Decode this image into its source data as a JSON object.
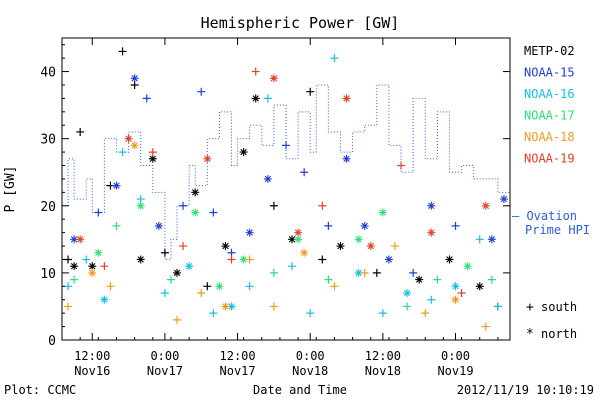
{
  "chart_data": {
    "type": "scatter",
    "title": "Hemispheric Power [GW]",
    "ylabel": "P [GW]",
    "xlabel": "Date and Time",
    "footer_left": "Plot: CCMC",
    "footer_right": "2012/11/19 10:10:19",
    "ylim": [
      0,
      45
    ],
    "yticks": [
      0,
      10,
      20,
      30,
      40
    ],
    "xlim": [
      "2012-11-16T07:00",
      "2012-11-19T09:00"
    ],
    "xticks": [
      {
        "t": "2012-11-16T12:00",
        "line1": "12:00",
        "line2": "Nov16"
      },
      {
        "t": "2012-11-17T00:00",
        "line1": "0:00",
        "line2": "Nov17"
      },
      {
        "t": "2012-11-17T12:00",
        "line1": "12:00",
        "line2": "Nov17"
      },
      {
        "t": "2012-11-18T00:00",
        "line1": "0:00",
        "line2": "Nov18"
      },
      {
        "t": "2012-11-18T12:00",
        "line1": "12:00",
        "line2": "Nov18"
      },
      {
        "t": "2012-11-19T00:00",
        "line1": "0:00",
        "line2": "Nov19"
      }
    ],
    "legend": {
      "placement": "right",
      "markers": [
        {
          "symbol": "+",
          "label": "south"
        },
        {
          "symbol": "*",
          "label": "north"
        }
      ],
      "ovation_line1": "— Ovation",
      "ovation_line2": "Prime HPI"
    },
    "ovation": {
      "name": "Ovation Prime HPI",
      "color": "#2b5fd9",
      "x": [
        "2012-11-16T07:00",
        "2012-11-16T08:00",
        "2012-11-16T09:00",
        "2012-11-16T11:00",
        "2012-11-16T12:00",
        "2012-11-16T14:00",
        "2012-11-16T16:00",
        "2012-11-16T18:00",
        "2012-11-16T20:00",
        "2012-11-16T22:00",
        "2012-11-17T00:00",
        "2012-11-17T01:00",
        "2012-11-17T02:00",
        "2012-11-17T04:00",
        "2012-11-17T05:00",
        "2012-11-17T07:00",
        "2012-11-17T09:00",
        "2012-11-17T11:00",
        "2012-11-17T12:00",
        "2012-11-17T14:00",
        "2012-11-17T16:00",
        "2012-11-17T18:00",
        "2012-11-17T20:00",
        "2012-11-17T22:00",
        "2012-11-18T00:00",
        "2012-11-18T01:00",
        "2012-11-18T03:00",
        "2012-11-18T05:00",
        "2012-11-18T07:00",
        "2012-11-18T09:00",
        "2012-11-18T11:00",
        "2012-11-18T13:00",
        "2012-11-18T15:00",
        "2012-11-18T17:00",
        "2012-11-18T19:00",
        "2012-11-18T21:00",
        "2012-11-18T23:00",
        "2012-11-19T01:00",
        "2012-11-19T03:00",
        "2012-11-19T05:00",
        "2012-11-19T07:00",
        "2012-11-19T09:00"
      ],
      "values": [
        20,
        27,
        21,
        24,
        19,
        30,
        28,
        31,
        26,
        22,
        12,
        15,
        20,
        26,
        23,
        30,
        34,
        26,
        30,
        32,
        29,
        35,
        27,
        34,
        28,
        38,
        31,
        28,
        31,
        32,
        38,
        29,
        25,
        36,
        27,
        34,
        25,
        26,
        24,
        24,
        22,
        18
      ]
    },
    "series": [
      {
        "name": "METP-02",
        "color": "#000000",
        "label": "METP-02",
        "points": [
          {
            "x": "2012-11-16T08:00",
            "y": 12,
            "m": "+"
          },
          {
            "x": "2012-11-16T09:00",
            "y": 11,
            "m": "*"
          },
          {
            "x": "2012-11-16T10:00",
            "y": 31,
            "m": "+"
          },
          {
            "x": "2012-11-16T12:00",
            "y": 11,
            "m": "*"
          },
          {
            "x": "2012-11-16T15:00",
            "y": 23,
            "m": "+"
          },
          {
            "x": "2012-11-16T17:00",
            "y": 43,
            "m": "+"
          },
          {
            "x": "2012-11-16T19:00",
            "y": 38,
            "m": "+"
          },
          {
            "x": "2012-11-16T20:00",
            "y": 12,
            "m": "*"
          },
          {
            "x": "2012-11-16T22:00",
            "y": 27,
            "m": "*"
          },
          {
            "x": "2012-11-17T00:00",
            "y": 13,
            "m": "+"
          },
          {
            "x": "2012-11-17T02:00",
            "y": 10,
            "m": "*"
          },
          {
            "x": "2012-11-17T05:00",
            "y": 22,
            "m": "*"
          },
          {
            "x": "2012-11-17T07:00",
            "y": 8,
            "m": "+"
          },
          {
            "x": "2012-11-17T10:00",
            "y": 14,
            "m": "*"
          },
          {
            "x": "2012-11-17T13:00",
            "y": 28,
            "m": "*"
          },
          {
            "x": "2012-11-17T15:00",
            "y": 36,
            "m": "*"
          },
          {
            "x": "2012-11-17T18:00",
            "y": 20,
            "m": "+"
          },
          {
            "x": "2012-11-17T21:00",
            "y": 15,
            "m": "*"
          },
          {
            "x": "2012-11-18T00:00",
            "y": 37,
            "m": "+"
          },
          {
            "x": "2012-11-18T02:00",
            "y": 12,
            "m": "+"
          },
          {
            "x": "2012-11-18T05:00",
            "y": 14,
            "m": "*"
          },
          {
            "x": "2012-11-18T11:00",
            "y": 10,
            "m": "+"
          },
          {
            "x": "2012-11-18T18:00",
            "y": 9,
            "m": "*"
          },
          {
            "x": "2012-11-18T23:00",
            "y": 12,
            "m": "*"
          },
          {
            "x": "2012-11-19T04:00",
            "y": 8,
            "m": "*"
          },
          {
            "x": "2012-11-19T07:00",
            "y": 5,
            "m": "+"
          }
        ]
      },
      {
        "name": "NOAA-15",
        "color": "#1f3fd1",
        "label": "NOAA-15",
        "points": [
          {
            "x": "2012-11-16T09:00",
            "y": 15,
            "m": "*"
          },
          {
            "x": "2012-11-16T13:00",
            "y": 19,
            "m": "+"
          },
          {
            "x": "2012-11-16T16:00",
            "y": 23,
            "m": "*"
          },
          {
            "x": "2012-11-16T19:00",
            "y": 39,
            "m": "*"
          },
          {
            "x": "2012-11-16T21:00",
            "y": 36,
            "m": "+"
          },
          {
            "x": "2012-11-16T23:00",
            "y": 17,
            "m": "*"
          },
          {
            "x": "2012-11-17T03:00",
            "y": 20,
            "m": "+"
          },
          {
            "x": "2012-11-17T06:00",
            "y": 37,
            "m": "+"
          },
          {
            "x": "2012-11-17T08:00",
            "y": 19,
            "m": "+"
          },
          {
            "x": "2012-11-17T11:00",
            "y": 13,
            "m": "+"
          },
          {
            "x": "2012-11-17T14:00",
            "y": 16,
            "m": "*"
          },
          {
            "x": "2012-11-17T17:00",
            "y": 24,
            "m": "*"
          },
          {
            "x": "2012-11-17T20:00",
            "y": 29,
            "m": "+"
          },
          {
            "x": "2012-11-17T23:00",
            "y": 25,
            "m": "+"
          },
          {
            "x": "2012-11-18T03:00",
            "y": 17,
            "m": "+"
          },
          {
            "x": "2012-11-18T06:00",
            "y": 27,
            "m": "*"
          },
          {
            "x": "2012-11-18T09:00",
            "y": 17,
            "m": "*"
          },
          {
            "x": "2012-11-18T13:00",
            "y": 12,
            "m": "*"
          },
          {
            "x": "2012-11-18T17:00",
            "y": 10,
            "m": "+"
          },
          {
            "x": "2012-11-18T20:00",
            "y": 20,
            "m": "*"
          },
          {
            "x": "2012-11-19T00:00",
            "y": 17,
            "m": "+"
          },
          {
            "x": "2012-11-19T06:00",
            "y": 15,
            "m": "*"
          },
          {
            "x": "2012-11-19T08:00",
            "y": 21,
            "m": "*"
          }
        ]
      },
      {
        "name": "NOAA-16",
        "color": "#18bfe0",
        "label": "NOAA-16",
        "points": [
          {
            "x": "2012-11-16T08:00",
            "y": 8,
            "m": "+"
          },
          {
            "x": "2012-11-16T11:00",
            "y": 12,
            "m": "+"
          },
          {
            "x": "2012-11-16T14:00",
            "y": 6,
            "m": "*"
          },
          {
            "x": "2012-11-16T17:00",
            "y": 28,
            "m": "+"
          },
          {
            "x": "2012-11-16T20:00",
            "y": 21,
            "m": "+"
          },
          {
            "x": "2012-11-17T00:00",
            "y": 7,
            "m": "+"
          },
          {
            "x": "2012-11-17T04:00",
            "y": 11,
            "m": "*"
          },
          {
            "x": "2012-11-17T08:00",
            "y": 4,
            "m": "+"
          },
          {
            "x": "2012-11-17T11:00",
            "y": 5,
            "m": "*"
          },
          {
            "x": "2012-11-17T14:00",
            "y": 8,
            "m": "+"
          },
          {
            "x": "2012-11-17T17:00",
            "y": 36,
            "m": "+"
          },
          {
            "x": "2012-11-17T21:00",
            "y": 11,
            "m": "+"
          },
          {
            "x": "2012-11-18T00:00",
            "y": 4,
            "m": "+"
          },
          {
            "x": "2012-11-18T04:00",
            "y": 42,
            "m": "+"
          },
          {
            "x": "2012-11-18T08:00",
            "y": 10,
            "m": "*"
          },
          {
            "x": "2012-11-18T12:00",
            "y": 4,
            "m": "+"
          },
          {
            "x": "2012-11-18T16:00",
            "y": 7,
            "m": "*"
          },
          {
            "x": "2012-11-18T20:00",
            "y": 6,
            "m": "+"
          },
          {
            "x": "2012-11-19T00:00",
            "y": 8,
            "m": "*"
          },
          {
            "x": "2012-11-19T04:00",
            "y": 15,
            "m": "+"
          },
          {
            "x": "2012-11-19T07:00",
            "y": 5,
            "m": "+"
          }
        ]
      },
      {
        "name": "NOAA-17",
        "color": "#2ede7a",
        "label": "NOAA-17",
        "points": [
          {
            "x": "2012-11-16T09:00",
            "y": 9,
            "m": "+"
          },
          {
            "x": "2012-11-16T13:00",
            "y": 13,
            "m": "*"
          },
          {
            "x": "2012-11-16T16:00",
            "y": 17,
            "m": "+"
          },
          {
            "x": "2012-11-16T20:00",
            "y": 20,
            "m": "*"
          },
          {
            "x": "2012-11-17T01:00",
            "y": 9,
            "m": "+"
          },
          {
            "x": "2012-11-17T05:00",
            "y": 19,
            "m": "*"
          },
          {
            "x": "2012-11-17T09:00",
            "y": 8,
            "m": "*"
          },
          {
            "x": "2012-11-17T13:00",
            "y": 12,
            "m": "*"
          },
          {
            "x": "2012-11-17T18:00",
            "y": 10,
            "m": "+"
          },
          {
            "x": "2012-11-17T22:00",
            "y": 15,
            "m": "*"
          },
          {
            "x": "2012-11-18T03:00",
            "y": 9,
            "m": "+"
          },
          {
            "x": "2012-11-18T08:00",
            "y": 15,
            "m": "*"
          },
          {
            "x": "2012-11-18T12:00",
            "y": 19,
            "m": "*"
          },
          {
            "x": "2012-11-18T16:00",
            "y": 5,
            "m": "+"
          },
          {
            "x": "2012-11-18T21:00",
            "y": 9,
            "m": "+"
          },
          {
            "x": "2012-11-19T02:00",
            "y": 11,
            "m": "*"
          },
          {
            "x": "2012-11-19T06:00",
            "y": 9,
            "m": "+"
          }
        ]
      },
      {
        "name": "NOAA-18",
        "color": "#f39a1e",
        "label": "NOAA-18",
        "points": [
          {
            "x": "2012-11-16T08:00",
            "y": 5,
            "m": "+"
          },
          {
            "x": "2012-11-16T12:00",
            "y": 10,
            "m": "*"
          },
          {
            "x": "2012-11-16T15:00",
            "y": 8,
            "m": "+"
          },
          {
            "x": "2012-11-16T19:00",
            "y": 29,
            "m": "*"
          },
          {
            "x": "2012-11-17T02:00",
            "y": 3,
            "m": "+"
          },
          {
            "x": "2012-11-17T06:00",
            "y": 7,
            "m": "+"
          },
          {
            "x": "2012-11-17T10:00",
            "y": 5,
            "m": "*"
          },
          {
            "x": "2012-11-17T14:00",
            "y": 12,
            "m": "+"
          },
          {
            "x": "2012-11-17T18:00",
            "y": 5,
            "m": "+"
          },
          {
            "x": "2012-11-17T23:00",
            "y": 13,
            "m": "*"
          },
          {
            "x": "2012-11-18T04:00",
            "y": 8,
            "m": "+"
          },
          {
            "x": "2012-11-18T09:00",
            "y": 10,
            "m": "+"
          },
          {
            "x": "2012-11-18T14:00",
            "y": 14,
            "m": "+"
          },
          {
            "x": "2012-11-18T19:00",
            "y": 4,
            "m": "+"
          },
          {
            "x": "2012-11-19T00:00",
            "y": 6,
            "m": "*"
          },
          {
            "x": "2012-11-19T05:00",
            "y": 2,
            "m": "+"
          }
        ]
      },
      {
        "name": "NOAA-19",
        "color": "#e2412a",
        "label": "NOAA-19",
        "points": [
          {
            "x": "2012-11-16T10:00",
            "y": 15,
            "m": "*"
          },
          {
            "x": "2012-11-16T14:00",
            "y": 11,
            "m": "+"
          },
          {
            "x": "2012-11-16T18:00",
            "y": 30,
            "m": "*"
          },
          {
            "x": "2012-11-16T22:00",
            "y": 28,
            "m": "+"
          },
          {
            "x": "2012-11-17T03:00",
            "y": 14,
            "m": "+"
          },
          {
            "x": "2012-11-17T07:00",
            "y": 27,
            "m": "*"
          },
          {
            "x": "2012-11-17T11:00",
            "y": 12,
            "m": "+"
          },
          {
            "x": "2012-11-17T15:00",
            "y": 40,
            "m": "+"
          },
          {
            "x": "2012-11-17T18:00",
            "y": 39,
            "m": "*"
          },
          {
            "x": "2012-11-17T22:00",
            "y": 16,
            "m": "*"
          },
          {
            "x": "2012-11-18T02:00",
            "y": 20,
            "m": "+"
          },
          {
            "x": "2012-11-18T06:00",
            "y": 36,
            "m": "*"
          },
          {
            "x": "2012-11-18T10:00",
            "y": 14,
            "m": "*"
          },
          {
            "x": "2012-11-18T15:00",
            "y": 26,
            "m": "+"
          },
          {
            "x": "2012-11-18T20:00",
            "y": 16,
            "m": "*"
          },
          {
            "x": "2012-11-19T01:00",
            "y": 7,
            "m": "+"
          },
          {
            "x": "2012-11-19T05:00",
            "y": 20,
            "m": "*"
          }
        ]
      }
    ]
  }
}
